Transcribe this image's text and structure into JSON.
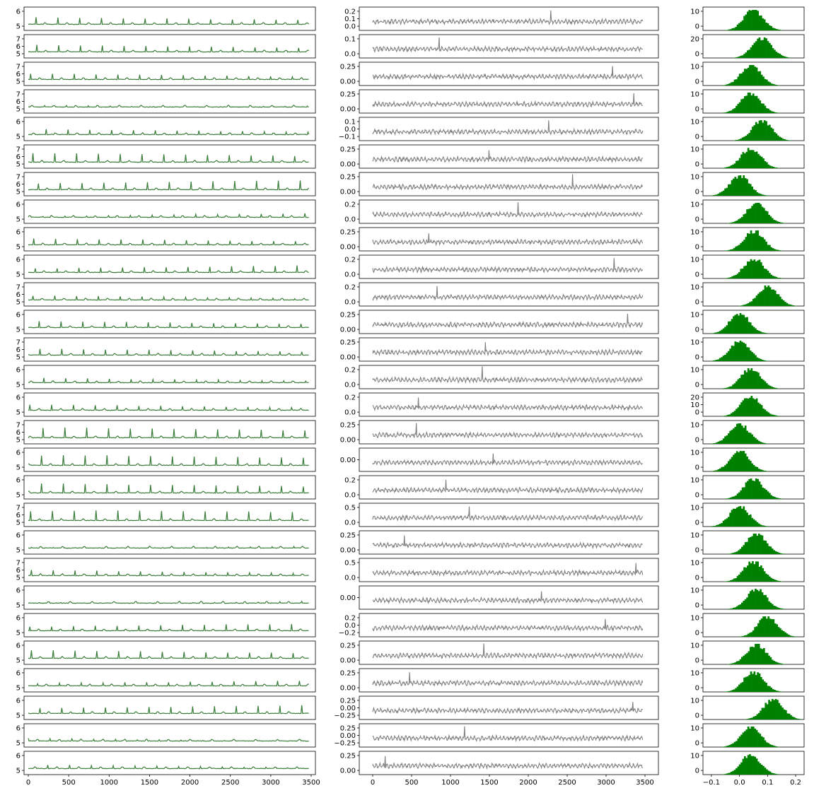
{
  "figure": {
    "rows": 28,
    "background": "#ffffff"
  },
  "colors": {
    "signal": "#3a7d3a",
    "residual": "#808080",
    "histogram": "#008000",
    "axes": "#000000"
  },
  "chart_data": [
    {
      "name": "ecg-signal-column",
      "type": "line",
      "series_count": 28,
      "x_range": [
        0,
        3500
      ],
      "x_ticks": [
        0,
        500,
        1000,
        1500,
        2000,
        2500,
        3000,
        3500
      ],
      "x_tick_labels": [
        "0",
        "500",
        "1000",
        "1500",
        "2000",
        "2500",
        "3000",
        "3500"
      ],
      "row_y_ticks": [
        [
          "6",
          "5"
        ],
        [
          "7",
          "6",
          "5"
        ],
        [
          "7",
          "6",
          "5"
        ],
        [
          "7",
          "6",
          "5"
        ],
        [
          "6",
          "5"
        ],
        [
          "7",
          "6",
          "5"
        ],
        [
          "7",
          "6",
          "5"
        ],
        [
          "6",
          "5"
        ],
        [
          "6",
          "5"
        ],
        [
          "6",
          "5"
        ],
        [
          "7",
          "6",
          "5"
        ],
        [
          "6",
          "5"
        ],
        [
          "7",
          "6",
          "5"
        ],
        [
          "6",
          "5"
        ],
        [
          "6",
          "5"
        ],
        [
          "7",
          "6",
          "5"
        ],
        [
          "6",
          "5"
        ],
        [
          "6",
          "5"
        ],
        [
          "7",
          "6",
          "5"
        ],
        [
          "6",
          "5"
        ],
        [
          "7",
          "6",
          "5"
        ],
        [
          "6",
          "5"
        ],
        [
          "6",
          "5"
        ],
        [
          "6",
          "5"
        ],
        [
          "6",
          "5"
        ],
        [
          "6",
          "5"
        ],
        [
          "6",
          "5"
        ],
        [
          "6",
          "5"
        ]
      ],
      "baseline": 4.7,
      "peak_height": 1.6,
      "beat_interval": 270
    },
    {
      "name": "residual-column",
      "type": "line",
      "series_count": 28,
      "x_range": [
        0,
        3500
      ],
      "x_ticks": [
        0,
        500,
        1000,
        1500,
        2000,
        2500,
        3000,
        3500
      ],
      "x_tick_labels": [
        "0",
        "500",
        "1000",
        "1500",
        "2000",
        "2500",
        "3000",
        "3500"
      ],
      "row_y_ticks": [
        [
          "0.2",
          "0.1",
          "0.0"
        ],
        [
          "0.1",
          "0.0"
        ],
        [
          "0.25",
          "0.00"
        ],
        [
          "0.25",
          "0.00"
        ],
        [
          "0.1",
          "0.0",
          "−0.1"
        ],
        [
          "0.25",
          "0.00"
        ],
        [
          "0.25",
          "0.00"
        ],
        [
          "0.2",
          "0.0"
        ],
        [
          "0.25",
          "0.00"
        ],
        [
          "0.2",
          "0.0"
        ],
        [
          "0.2",
          "0.0"
        ],
        [
          "0.25",
          "0.00"
        ],
        [
          "0.25",
          "0.00"
        ],
        [
          "0.2",
          "0.0"
        ],
        [
          "0.2",
          "0.0"
        ],
        [
          "0.25",
          "0.00"
        ],
        [
          "0.00"
        ],
        [
          "0.2",
          "0.0"
        ],
        [
          "0.5",
          "0.0"
        ],
        [
          "0.25",
          "0.00"
        ],
        [
          "0.5",
          "0.0"
        ],
        [
          "0.00"
        ],
        [
          "0.2",
          "0.0",
          "−0.2"
        ],
        [
          "0.25",
          "0.00"
        ],
        [
          "0.25",
          "0.00"
        ],
        [
          "0.25",
          "0.00",
          "−0.25"
        ],
        [
          "0.25",
          "0.00",
          "−0.25"
        ],
        [
          "0.25",
          "0.00"
        ]
      ],
      "amplitude": 0.05
    },
    {
      "name": "residual-histogram-column",
      "type": "bar",
      "series_count": 28,
      "x_range": [
        -0.13,
        0.23
      ],
      "x_ticks": [
        -0.1,
        0.0,
        0.1,
        0.2
      ],
      "x_tick_labels": [
        "−0.1",
        "0.0",
        "0.1",
        "0.2"
      ],
      "row_y_ticks": [
        [
          "10",
          "0"
        ],
        [
          "20",
          "0"
        ],
        [
          "10",
          "0"
        ],
        [
          "10",
          "0"
        ],
        [
          "10",
          "0"
        ],
        [
          "10",
          "0"
        ],
        [
          "10",
          "0"
        ],
        [
          "10",
          "0"
        ],
        [
          "10",
          "0"
        ],
        [
          "10",
          "0"
        ],
        [
          "10",
          "0"
        ],
        [
          "10",
          "0"
        ],
        [
          "10",
          "0"
        ],
        [
          "10",
          "0"
        ],
        [
          "20",
          "10",
          "0"
        ],
        [
          "10",
          "0"
        ],
        [
          "10",
          "0"
        ],
        [
          "10",
          "0"
        ],
        [
          "10",
          "0"
        ],
        [
          "10",
          "0"
        ],
        [
          "10",
          "0"
        ],
        [
          "10",
          "0"
        ],
        [
          "10",
          "0"
        ],
        [
          "10",
          "0"
        ],
        [
          "10",
          "0"
        ],
        [
          "10",
          "0"
        ],
        [
          "10",
          "0"
        ],
        [
          "10",
          "0"
        ]
      ],
      "row_centers": [
        0.05,
        0.08,
        0.04,
        0.04,
        0.08,
        0.04,
        0.0,
        0.06,
        0.05,
        0.05,
        0.1,
        0.0,
        0.0,
        0.04,
        0.04,
        0.0,
        0.0,
        0.05,
        0.0,
        0.06,
        0.05,
        0.06,
        0.1,
        0.06,
        0.05,
        0.12,
        0.04,
        0.04
      ]
    }
  ]
}
